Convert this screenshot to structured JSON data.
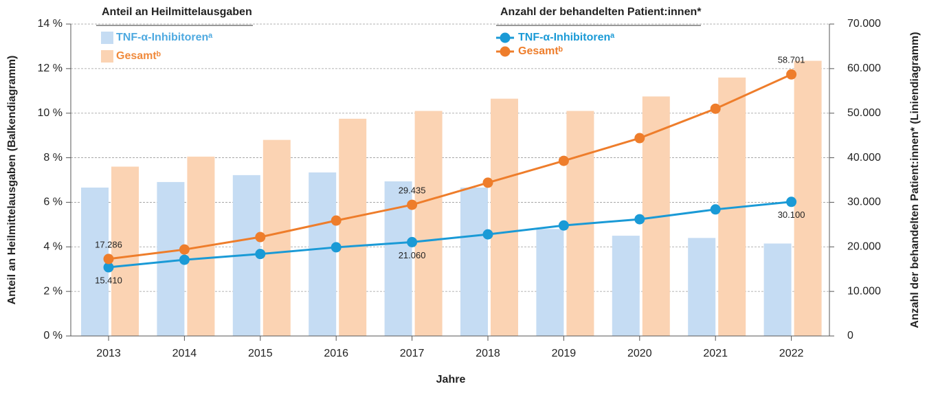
{
  "chart_data": {
    "type": "combo",
    "x_label": "Jahre",
    "y_label": "Anteil an Heilmittelausgaben (Balkendiagramm)",
    "y2_label": "Anzahl der behandelten Patient:innen* (Liniendiagramm)",
    "legend_title_bars": "Anteil an Heilmittelausgaben",
    "legend_title_lines": "Anzahl der behandelten Patient:innen*",
    "categories": [
      "2013",
      "2014",
      "2015",
      "2016",
      "2017",
      "2018",
      "2019",
      "2020",
      "2021",
      "2022"
    ],
    "ylim": [
      0,
      14
    ],
    "yticks": [
      {
        "value": 0,
        "label": "0 %"
      },
      {
        "value": 2,
        "label": "2 %"
      },
      {
        "value": 4,
        "label": "4 %"
      },
      {
        "value": 6,
        "label": "6 %"
      },
      {
        "value": 8,
        "label": "8 %"
      },
      {
        "value": 10,
        "label": "10 %"
      },
      {
        "value": 12,
        "label": "12 %"
      },
      {
        "value": 14,
        "label": "14 %"
      }
    ],
    "y2lim": [
      0,
      70000
    ],
    "y2ticks": [
      0,
      {
        "value": 10000,
        "label": "10.000"
      },
      {
        "value": 20000,
        "label": "20.000"
      },
      {
        "value": 30000,
        "label": "30.000"
      },
      {
        "value": 40000,
        "label": "40.000"
      },
      {
        "value": 50000,
        "label": "50.000"
      },
      {
        "value": 60000,
        "label": "60.000"
      },
      {
        "value": 70000,
        "label": "70.000"
      }
    ],
    "grid": true,
    "series": [
      {
        "name": "TNF-α-Inhibitorenᵃ",
        "type": "bar",
        "color": "#c5dcf3",
        "text_color": "#4ea9e0",
        "values": [
          6.66,
          6.91,
          7.22,
          7.34,
          6.94,
          6.66,
          4.8,
          4.5,
          4.4,
          4.15
        ]
      },
      {
        "name": "Gesamtᵇ",
        "type": "bar",
        "color": "#fbd3b3",
        "text_color": "#f08a3c",
        "values": [
          7.6,
          8.05,
          8.8,
          9.75,
          10.1,
          10.65,
          10.1,
          10.75,
          11.6,
          12.35
        ]
      },
      {
        "name": "TNF-α-Inhibitorenᵃ",
        "type": "line",
        "axis": "y2",
        "color": "#1a9ad6",
        "text_color": "#1a9ad6",
        "label_side": "below",
        "values": [
          15410,
          17100,
          18400,
          19900,
          21060,
          22800,
          24800,
          26200,
          28400,
          30100
        ],
        "value_labels": [
          "15.410",
          null,
          null,
          null,
          "21.060",
          null,
          null,
          null,
          null,
          "30.100"
        ]
      },
      {
        "name": "Gesamtᵇ",
        "type": "line",
        "axis": "y2",
        "color": "#ee7d2b",
        "text_color": "#ee7d2b",
        "label_side": "above",
        "values": [
          17286,
          19400,
          22200,
          25900,
          29435,
          34400,
          39300,
          44400,
          51000,
          58701
        ],
        "value_labels": [
          "17.286",
          null,
          null,
          null,
          "29.435",
          null,
          null,
          null,
          null,
          "58.701"
        ]
      }
    ]
  }
}
